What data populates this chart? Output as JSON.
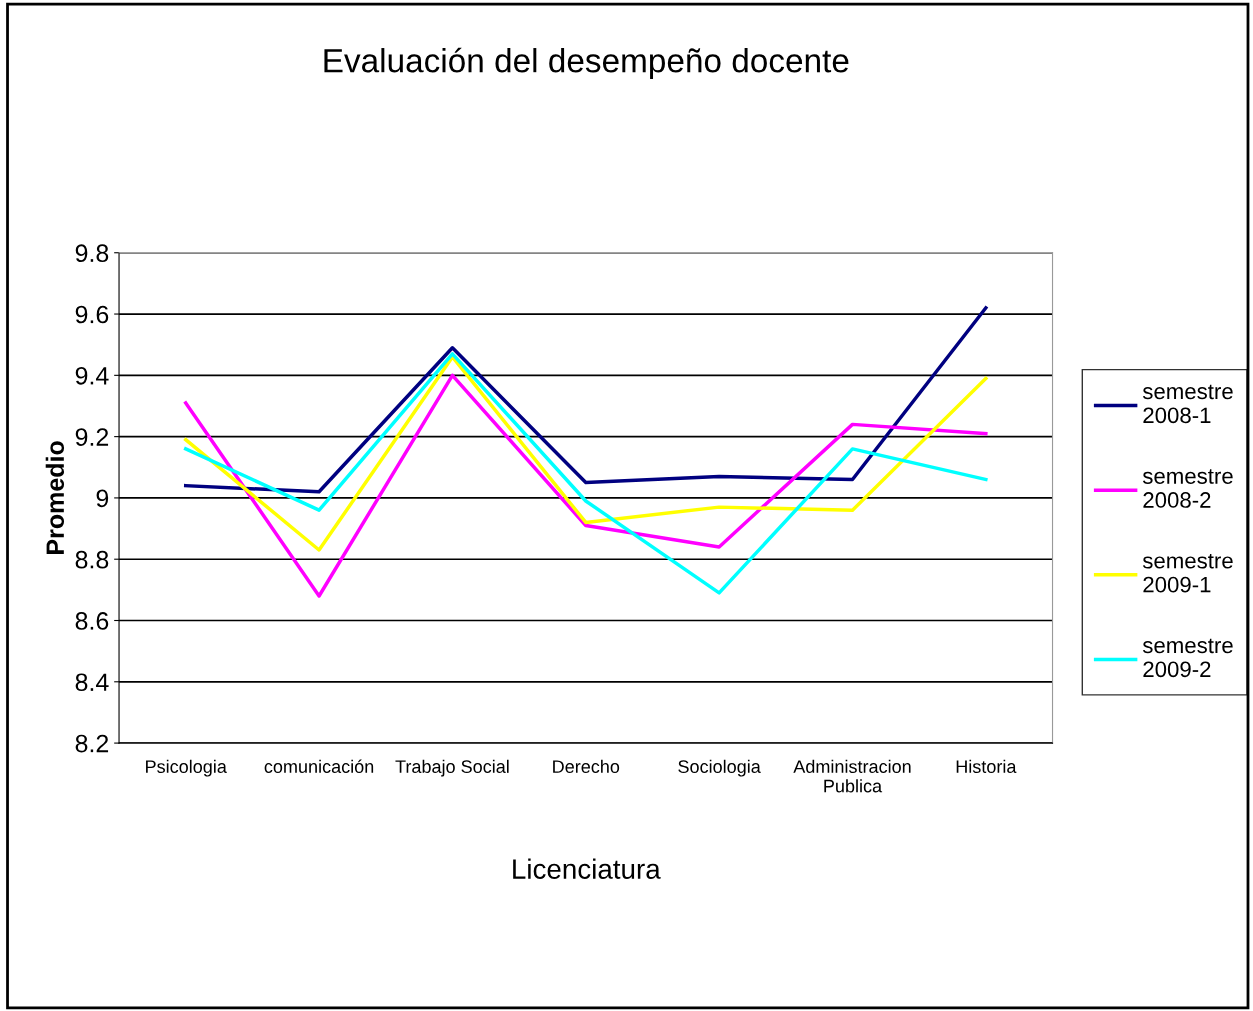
{
  "chart_data": {
    "type": "line",
    "title": "Evaluación del desempeño docente",
    "xlabel": "Licenciatura",
    "ylabel": "Promedio",
    "categories": [
      "Psicologia",
      "comunicación",
      "Trabajo Social",
      "Derecho",
      "Sociologia",
      "Administracion\nPublica",
      "Historia"
    ],
    "series": [
      {
        "name": "semestre\n2008-1",
        "color": "#000080",
        "values": [
          9.04,
          9.02,
          9.49,
          9.05,
          9.07,
          9.06,
          9.62
        ]
      },
      {
        "name": "semestre\n2008-2",
        "color": "#ff00ff",
        "values": [
          9.31,
          8.68,
          9.4,
          8.91,
          8.84,
          9.24,
          9.21
        ]
      },
      {
        "name": "semestre\n2009-1",
        "color": "#ffff00",
        "values": [
          9.19,
          8.83,
          9.46,
          8.92,
          8.97,
          8.96,
          9.39
        ]
      },
      {
        "name": "semestre\n2009-2",
        "color": "#00ffff",
        "values": [
          9.16,
          8.96,
          9.47,
          8.99,
          8.69,
          9.16,
          9.06
        ]
      }
    ],
    "ylim": [
      8.2,
      9.8
    ],
    "yticks": [
      8.2,
      8.4,
      8.6,
      8.8,
      9,
      9.2,
      9.4,
      9.6,
      9.8
    ],
    "grid": "y",
    "legend": "right",
    "marker": "none",
    "line_style": "solid"
  }
}
